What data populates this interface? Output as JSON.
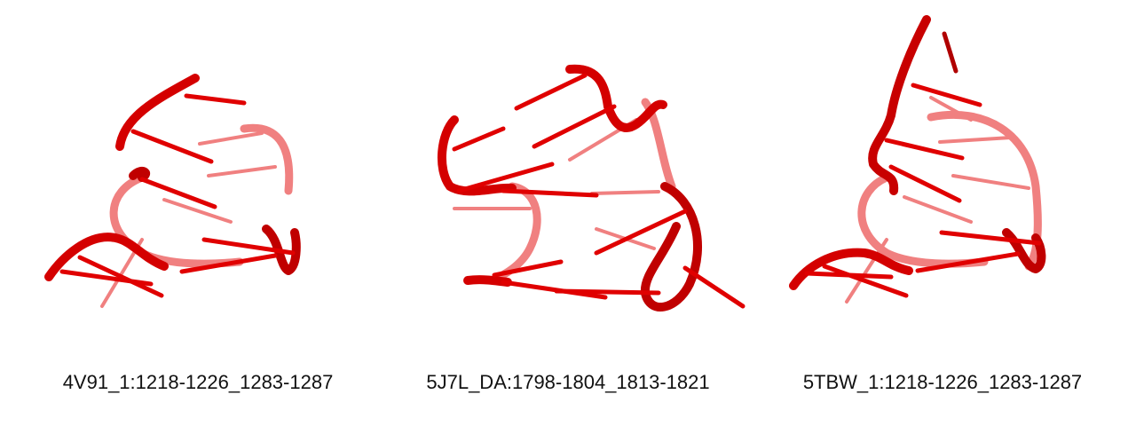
{
  "colors": {
    "strand": "#e00000",
    "strand_dark": "#a80000",
    "strand_faded": "#f08080"
  },
  "panels": [
    {
      "caption": "4V91_1:1218-1226_1283-1287"
    },
    {
      "caption": "5J7L_DA:1798-1804_1813-1821"
    },
    {
      "caption": "5TBW_1:1218-1226_1283-1287"
    }
  ]
}
